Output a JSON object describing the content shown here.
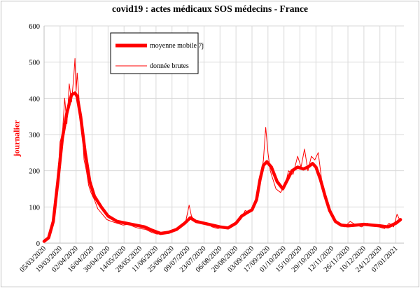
{
  "chart_data": {
    "type": "line",
    "title": "covid19 : actes médicaux SOS médecins - France",
    "xlabel": "",
    "ylabel": "journalier",
    "ylim": [
      0,
      600
    ],
    "yticks": [
      0,
      100,
      200,
      300,
      400,
      500,
      600
    ],
    "xlim": [
      "2020-03-05",
      "2021-01-14"
    ],
    "xticks": [
      "05/03/2020",
      "19/03/2020",
      "02/04/2020",
      "16/04/2020",
      "30/04/2020",
      "14/05/2020",
      "28/05/2020",
      "11/06/2020",
      "25/06/2020",
      "09/07/2020",
      "23/07/2020",
      "06/08/2020",
      "20/08/2020",
      "03/09/2020",
      "17/09/2020",
      "01/10/2020",
      "15/10/2020",
      "29/10/2020",
      "12/11/2020",
      "26/11/2020",
      "10/12/2020",
      "24/12/2020",
      "07/01/2021"
    ],
    "grid": true,
    "legend_position": "top-left",
    "series": [
      {
        "name": "moyenne mobile 7j",
        "color": "#ff0000",
        "style": "thick",
        "x": [
          "2020-03-05",
          "2020-03-09",
          "2020-03-13",
          "2020-03-17",
          "2020-03-21",
          "2020-03-25",
          "2020-03-29",
          "2020-04-01",
          "2020-04-03",
          "2020-04-06",
          "2020-04-10",
          "2020-04-14",
          "2020-04-18",
          "2020-04-24",
          "2020-04-30",
          "2020-05-08",
          "2020-05-16",
          "2020-05-24",
          "2020-06-01",
          "2020-06-08",
          "2020-06-15",
          "2020-06-22",
          "2020-06-29",
          "2020-07-06",
          "2020-07-11",
          "2020-07-16",
          "2020-07-23",
          "2020-07-30",
          "2020-08-06",
          "2020-08-13",
          "2020-08-20",
          "2020-08-25",
          "2020-08-30",
          "2020-09-03",
          "2020-09-07",
          "2020-09-10",
          "2020-09-13",
          "2020-09-16",
          "2020-09-20",
          "2020-09-25",
          "2020-09-30",
          "2020-10-04",
          "2020-10-08",
          "2020-10-13",
          "2020-10-18",
          "2020-10-22",
          "2020-10-26",
          "2020-10-29",
          "2020-11-02",
          "2020-11-06",
          "2020-11-10",
          "2020-11-15",
          "2020-11-20",
          "2020-11-26",
          "2020-12-03",
          "2020-12-10",
          "2020-12-17",
          "2020-12-24",
          "2020-12-31",
          "2021-01-07",
          "2021-01-11"
        ],
        "y": [
          5,
          15,
          60,
          170,
          290,
          360,
          410,
          415,
          405,
          350,
          250,
          170,
          130,
          100,
          75,
          60,
          55,
          50,
          45,
          35,
          27,
          30,
          38,
          55,
          70,
          60,
          55,
          50,
          45,
          42,
          55,
          75,
          85,
          92,
          120,
          175,
          215,
          225,
          210,
          170,
          150,
          175,
          200,
          210,
          205,
          210,
          220,
          210,
          175,
          130,
          90,
          60,
          50,
          48,
          50,
          52,
          50,
          48,
          45,
          55,
          65
        ]
      },
      {
        "name": "donnée brutes",
        "color": "#ff0000",
        "style": "thin",
        "x": [
          "2020-03-05",
          "2020-03-08",
          "2020-03-11",
          "2020-03-14",
          "2020-03-17",
          "2020-03-19",
          "2020-03-21",
          "2020-03-23",
          "2020-03-25",
          "2020-03-27",
          "2020-03-29",
          "2020-03-31",
          "2020-04-01",
          "2020-04-02",
          "2020-04-03",
          "2020-04-05",
          "2020-04-07",
          "2020-04-09",
          "2020-04-11",
          "2020-04-13",
          "2020-04-15",
          "2020-04-18",
          "2020-04-21",
          "2020-04-25",
          "2020-04-29",
          "2020-05-03",
          "2020-05-08",
          "2020-05-13",
          "2020-05-18",
          "2020-05-23",
          "2020-05-28",
          "2020-06-02",
          "2020-06-07",
          "2020-06-12",
          "2020-06-17",
          "2020-06-22",
          "2020-06-27",
          "2020-07-02",
          "2020-07-07",
          "2020-07-10",
          "2020-07-12",
          "2020-07-15",
          "2020-07-20",
          "2020-07-25",
          "2020-07-30",
          "2020-08-04",
          "2020-08-09",
          "2020-08-14",
          "2020-08-19",
          "2020-08-24",
          "2020-08-28",
          "2020-09-01",
          "2020-09-05",
          "2020-09-08",
          "2020-09-11",
          "2020-09-13",
          "2020-09-15",
          "2020-09-17",
          "2020-09-19",
          "2020-09-21",
          "2020-09-24",
          "2020-09-28",
          "2020-10-02",
          "2020-10-05",
          "2020-10-09",
          "2020-10-13",
          "2020-10-16",
          "2020-10-19",
          "2020-10-22",
          "2020-10-25",
          "2020-10-28",
          "2020-10-31",
          "2020-11-03",
          "2020-11-06",
          "2020-11-09",
          "2020-11-13",
          "2020-11-18",
          "2020-11-23",
          "2020-11-28",
          "2020-12-03",
          "2020-12-08",
          "2020-12-13",
          "2020-12-18",
          "2020-12-23",
          "2020-12-28",
          "2021-01-01",
          "2021-01-05",
          "2021-01-08",
          "2021-01-11"
        ],
        "y": [
          8,
          12,
          40,
          90,
          180,
          280,
          300,
          400,
          330,
          440,
          390,
          460,
          510,
          420,
          470,
          380,
          330,
          230,
          200,
          160,
          140,
          120,
          95,
          80,
          65,
          60,
          55,
          50,
          52,
          45,
          40,
          38,
          30,
          25,
          28,
          30,
          35,
          45,
          60,
          105,
          75,
          60,
          55,
          55,
          45,
          40,
          45,
          42,
          55,
          65,
          90,
          85,
          110,
          140,
          185,
          230,
          320,
          250,
          200,
          180,
          150,
          140,
          160,
          200,
          190,
          240,
          210,
          260,
          200,
          240,
          230,
          250,
          175,
          130,
          100,
          70,
          55,
          45,
          60,
          50,
          45,
          55,
          50,
          45,
          40,
          55,
          45,
          80,
          60
        ]
      }
    ]
  }
}
